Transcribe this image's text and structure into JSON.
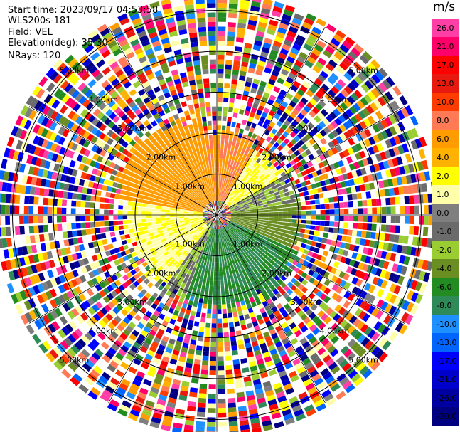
{
  "header": {
    "start_time": "Start time: 2023/09/17 04:53:58",
    "station": "WLS200s-181",
    "field": "Field: VEL",
    "elevation": "Elevation(deg): 35.30",
    "nrays": "NRays: 120"
  },
  "colorbar": {
    "unit": "m/s",
    "ticks": [
      "26.0",
      "21.0",
      "17.0",
      "13.0",
      "10.0",
      "8.0",
      "6.0",
      "4.0",
      "2.0",
      "1.0",
      "0.0",
      "-1.0",
      "-2.0",
      "-4.0",
      "-6.0",
      "-8.0",
      "-10.0",
      "-13.0",
      "-17.0",
      "-21.0",
      "-26.0",
      "-30.0"
    ],
    "colors": [
      "#ff3fa5",
      "#ff006a",
      "#ff0000",
      "#e8190e",
      "#ff3c00",
      "#ff7a55",
      "#ff9c00",
      "#ffb300",
      "#ffff00",
      "#ffffaa",
      "#7f7f7f",
      "#6b6b6b",
      "#9acd32",
      "#6b8e23",
      "#228b22",
      "#2e8b57",
      "#1e90ff",
      "#0064ff",
      "#0000ff",
      "#0000cd",
      "#0000a0",
      "#000080"
    ]
  },
  "chart_data": {
    "type": "ppi",
    "field": "VEL",
    "units": "m/s",
    "nrays": 120,
    "elevation_deg": 35.3,
    "max_range_km": 5.3,
    "range_ring_labels": [
      "1.00km",
      "2.00km",
      "3.00km",
      "4.00km",
      "5.00km"
    ],
    "range_rings_km": [
      1,
      2,
      3,
      4,
      5
    ],
    "velocity_sectors": [
      {
        "az_start": 280,
        "az_end": 350,
        "v": 7,
        "range_km": [
          0.3,
          2.3
        ]
      },
      {
        "az_start": 350,
        "az_end": 30,
        "v": 8,
        "range_km": [
          0.3,
          1.8
        ]
      },
      {
        "az_start": 30,
        "az_end": 60,
        "v": 2,
        "range_km": [
          0.3,
          1.6
        ]
      },
      {
        "az_start": 60,
        "az_end": 80,
        "v": -1,
        "range_km": [
          0.3,
          1.7
        ]
      },
      {
        "az_start": 80,
        "az_end": 115,
        "v": -3,
        "range_km": [
          0.3,
          1.8
        ]
      },
      {
        "az_start": 115,
        "az_end": 200,
        "v": -6,
        "range_km": [
          0.3,
          2.0
        ]
      },
      {
        "az_start": 200,
        "az_end": 215,
        "v": -1,
        "range_km": [
          0.3,
          2.0
        ]
      },
      {
        "az_start": 215,
        "az_end": 260,
        "v": 2,
        "range_km": [
          0.3,
          1.9
        ]
      },
      {
        "az_start": 260,
        "az_end": 280,
        "v": 2,
        "range_km": [
          0.3,
          2.0
        ]
      }
    ]
  }
}
